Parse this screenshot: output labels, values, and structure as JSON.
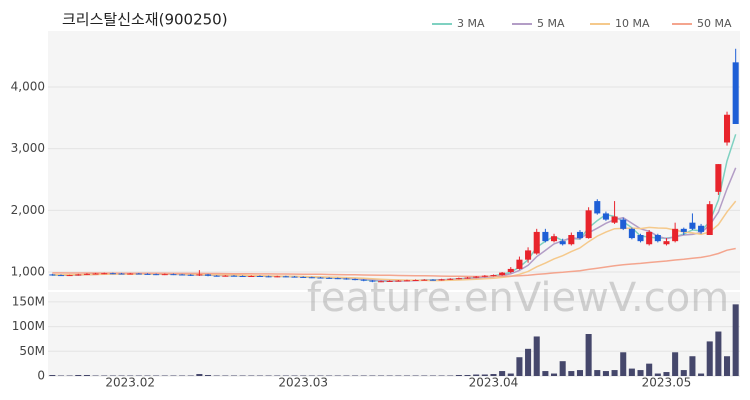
{
  "chart_data": {
    "type": "candlestick",
    "title": "크리스탈신소재(900250)",
    "watermark": "feature.enViewV.com",
    "up_color": "#e8242c",
    "down_color": "#1e5fd6",
    "grid": true,
    "legend": "top-right",
    "xlim": [
      -0.5,
      79.5
    ],
    "xticks": [
      {
        "value": 9,
        "label": "2023.02"
      },
      {
        "value": 29,
        "label": "2023.03"
      },
      {
        "value": 51,
        "label": "2023.04"
      },
      {
        "value": 71,
        "label": "2023.05"
      }
    ],
    "ylim": [
      700,
      4900
    ],
    "yticks": [
      {
        "value": 1000,
        "label": "1,000"
      },
      {
        "value": 2000,
        "label": "2,000"
      },
      {
        "value": 3000,
        "label": "3,000"
      },
      {
        "value": 4000,
        "label": "4,000"
      }
    ],
    "open": [
      960,
      950,
      945,
      950,
      960,
      970,
      975,
      980,
      975,
      970,
      975,
      970,
      965,
      960,
      965,
      960,
      955,
      945,
      960,
      940,
      935,
      940,
      935,
      930,
      935,
      930,
      925,
      930,
      925,
      920,
      915,
      910,
      905,
      900,
      895,
      885,
      875,
      860,
      845,
      850,
      855,
      860,
      865,
      870,
      875,
      870,
      880,
      890,
      900,
      910,
      925,
      940,
      950,
      1000,
      1050,
      1200,
      1300,
      1650,
      1500,
      1500,
      1450,
      1650,
      1550,
      2150,
      1950,
      1800,
      1850,
      1700,
      1600,
      1450,
      1600,
      1450,
      1500,
      1700,
      1800,
      1750,
      1600,
      2300,
      3100,
      4400
    ],
    "high": [
      970,
      960,
      955,
      970,
      980,
      985,
      990,
      990,
      985,
      985,
      985,
      980,
      975,
      975,
      975,
      970,
      965,
      1030,
      970,
      950,
      950,
      950,
      945,
      945,
      945,
      940,
      940,
      940,
      935,
      930,
      925,
      920,
      915,
      910,
      905,
      895,
      885,
      870,
      860,
      865,
      870,
      875,
      880,
      885,
      885,
      890,
      900,
      910,
      920,
      935,
      950,
      960,
      1000,
      1080,
      1250,
      1400,
      1700,
      1700,
      1620,
      1540,
      1640,
      1680,
      2050,
      2180,
      1980,
      2150,
      1880,
      1720,
      1620,
      1680,
      1620,
      1550,
      1800,
      1720,
      1950,
      1780,
      2150,
      2750,
      3600,
      4620
    ],
    "low": [
      940,
      935,
      935,
      940,
      950,
      960,
      965,
      965,
      960,
      960,
      960,
      955,
      950,
      950,
      950,
      945,
      935,
      935,
      930,
      925,
      925,
      925,
      920,
      920,
      920,
      915,
      915,
      915,
      910,
      905,
      900,
      895,
      890,
      885,
      875,
      865,
      850,
      835,
      835,
      840,
      845,
      850,
      855,
      860,
      860,
      860,
      870,
      880,
      890,
      900,
      915,
      930,
      940,
      980,
      1040,
      1150,
      1280,
      1480,
      1480,
      1430,
      1430,
      1530,
      1540,
      1930,
      1830,
      1780,
      1680,
      1530,
      1480,
      1430,
      1480,
      1430,
      1480,
      1600,
      1680,
      1620,
      1600,
      2250,
      3050,
      3400
    ],
    "close": [
      950,
      945,
      950,
      960,
      970,
      975,
      980,
      975,
      970,
      975,
      970,
      965,
      960,
      965,
      960,
      955,
      945,
      960,
      940,
      935,
      940,
      935,
      930,
      935,
      930,
      925,
      930,
      925,
      920,
      915,
      910,
      905,
      900,
      895,
      885,
      875,
      860,
      845,
      850,
      855,
      860,
      865,
      870,
      875,
      870,
      880,
      890,
      900,
      910,
      925,
      940,
      950,
      990,
      1050,
      1200,
      1350,
      1650,
      1500,
      1580,
      1450,
      1600,
      1550,
      2000,
      1950,
      1850,
      1900,
      1700,
      1550,
      1500,
      1650,
      1500,
      1500,
      1700,
      1650,
      1700,
      1650,
      2100,
      2750,
      3550,
      3400
    ],
    "series": [
      {
        "name": "3 MA",
        "color": "#7fd1c1",
        "values": [
          950,
          948,
          948,
          952,
          960,
          968,
          975,
          977,
          975,
          973,
          972,
          970,
          965,
          963,
          962,
          960,
          953,
          953,
          948,
          945,
          938,
          937,
          935,
          933,
          932,
          930,
          928,
          927,
          925,
          920,
          915,
          910,
          905,
          900,
          893,
          885,
          873,
          860,
          852,
          850,
          855,
          860,
          865,
          870,
          872,
          875,
          880,
          890,
          900,
          912,
          925,
          938,
          960,
          997,
          1080,
          1200,
          1400,
          1500,
          1577,
          1510,
          1543,
          1533,
          1717,
          1833,
          1933,
          1900,
          1817,
          1717,
          1583,
          1567,
          1550,
          1550,
          1567,
          1617,
          1683,
          1667,
          1817,
          2167,
          2800,
          3233
        ]
      },
      {
        "name": "5 MA",
        "color": "#b39dc6",
        "values": [
          955,
          952,
          950,
          952,
          955,
          960,
          967,
          972,
          974,
          975,
          974,
          971,
          968,
          967,
          964,
          961,
          957,
          957,
          952,
          947,
          944,
          942,
          936,
          935,
          934,
          931,
          930,
          929,
          926,
          923,
          919,
          915,
          910,
          905,
          899,
          892,
          883,
          872,
          863,
          857,
          854,
          855,
          860,
          865,
          868,
          872,
          877,
          883,
          890,
          901,
          913,
          925,
          943,
          971,
          1026,
          1108,
          1248,
          1350,
          1456,
          1506,
          1556,
          1536,
          1636,
          1710,
          1790,
          1850,
          1880,
          1790,
          1700,
          1660,
          1580,
          1540,
          1570,
          1600,
          1610,
          1640,
          1760,
          1970,
          2350,
          2690
        ]
      },
      {
        "name": "10 MA",
        "color": "#f5c98b",
        "values": [
          958,
          957,
          956,
          957,
          958,
          960,
          962,
          964,
          966,
          965,
          967,
          969,
          970,
          970,
          969,
          967,
          964,
          962,
          958,
          954,
          951,
          948,
          945,
          942,
          939,
          936,
          934,
          931,
          929,
          927,
          924,
          921,
          918,
          914,
          910,
          905,
          898,
          890,
          883,
          877,
          872,
          868,
          865,
          863,
          861,
          862,
          865,
          870,
          876,
          883,
          891,
          900,
          912,
          929,
          962,
          1009,
          1085,
          1145,
          1212,
          1265,
          1331,
          1391,
          1492,
          1582,
          1647,
          1702,
          1707,
          1712,
          1704,
          1724,
          1714,
          1709,
          1679,
          1649,
          1634,
          1609,
          1649,
          1769,
          1974,
          2150
        ]
      },
      {
        "name": "50 MA",
        "color": "#f4a58e",
        "values": [
          985,
          985,
          984,
          984,
          983,
          983,
          982,
          982,
          981,
          981,
          980,
          980,
          979,
          979,
          978,
          978,
          977,
          977,
          976,
          975,
          974,
          973,
          972,
          971,
          970,
          969,
          968,
          967,
          966,
          965,
          964,
          962,
          960,
          958,
          956,
          954,
          952,
          950,
          948,
          946,
          944,
          942,
          940,
          938,
          936,
          934,
          932,
          930,
          928,
          927,
          928,
          930,
          931,
          933,
          939,
          947,
          961,
          972,
          985,
          995,
          1008,
          1020,
          1042,
          1062,
          1081,
          1101,
          1116,
          1129,
          1140,
          1154,
          1166,
          1178,
          1194,
          1208,
          1223,
          1237,
          1262,
          1300,
          1354,
          1381
        ]
      }
    ],
    "volume": {
      "color": "#45476b",
      "ylim": [
        0,
        170000000
      ],
      "yticks": [
        0,
        {
          "value": 50000000,
          "label": "50M"
        },
        {
          "value": 100000000,
          "label": "100M"
        },
        {
          "value": 150000000,
          "label": "150M"
        }
      ],
      "values": [
        2000000,
        1000000,
        1000000,
        2000000,
        2000000,
        1000000,
        1000000,
        1000000,
        1000000,
        1000000,
        1000000,
        1000000,
        1000000,
        1000000,
        1000000,
        1000000,
        1000000,
        4000000,
        2000000,
        1000000,
        1000000,
        1000000,
        1000000,
        1000000,
        1000000,
        1000000,
        1000000,
        1000000,
        1000000,
        1000000,
        1000000,
        1000000,
        1000000,
        1000000,
        1000000,
        1000000,
        1000000,
        1000000,
        1000000,
        1000000,
        1000000,
        1000000,
        1000000,
        1000000,
        1000000,
        1000000,
        1000000,
        2000000,
        2000000,
        3000000,
        3000000,
        4000000,
        10000000,
        5000000,
        38000000,
        55000000,
        80000000,
        10000000,
        5000000,
        30000000,
        10000000,
        12000000,
        85000000,
        12000000,
        10000000,
        12000000,
        48000000,
        15000000,
        12000000,
        25000000,
        5000000,
        8000000,
        48000000,
        12000000,
        40000000,
        5000000,
        70000000,
        90000000,
        40000000,
        145000000
      ]
    }
  }
}
